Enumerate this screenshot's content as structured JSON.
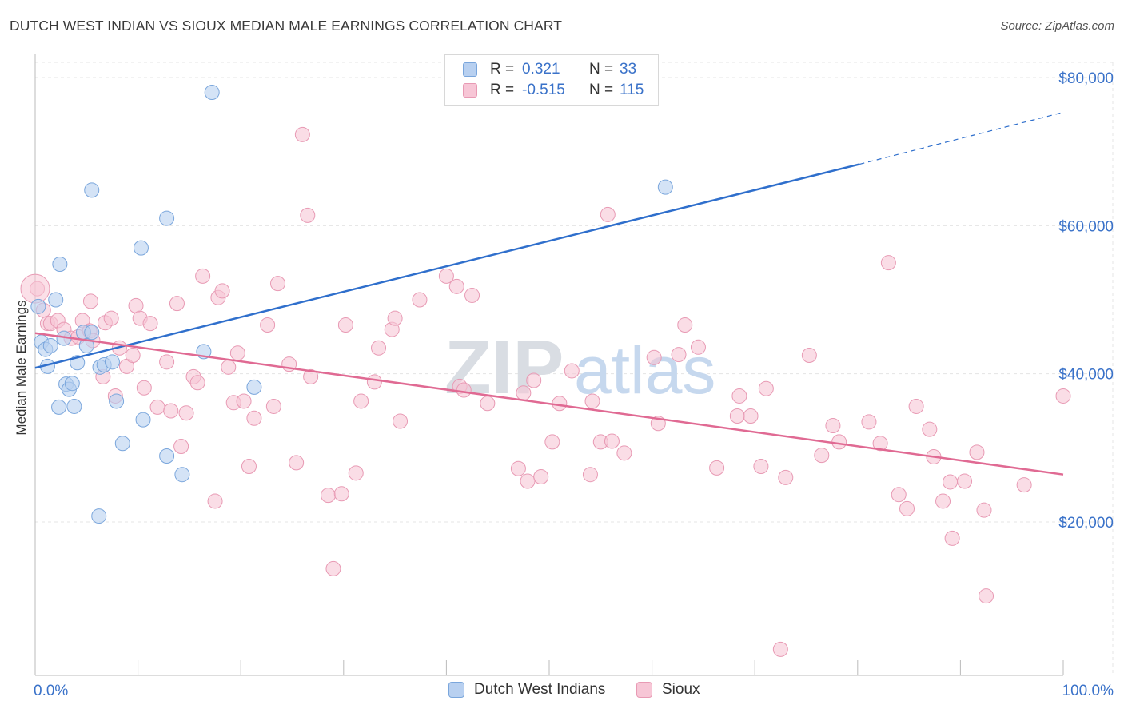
{
  "title": "DUTCH WEST INDIAN VS SIOUX MEDIAN MALE EARNINGS CORRELATION CHART",
  "source": "Source: ZipAtlas.com",
  "watermark": {
    "zip": "ZIP",
    "atlas": "atlas"
  },
  "colors": {
    "blue_fill": "#b8d0f0",
    "blue_stroke": "#7aa6dc",
    "blue_line": "#2f6fcc",
    "pink_fill": "#f7c6d6",
    "pink_stroke": "#e89ab4",
    "pink_line": "#e06a93",
    "axis_text": "#3a72c9",
    "grid": "#e4e4e4"
  },
  "legend_top": {
    "rows": [
      {
        "series": "Dutch West Indians",
        "r_label": "R =",
        "r_value": "0.321",
        "n_label": "N =",
        "n_value": "33"
      },
      {
        "series": "Sioux",
        "r_label": "R =",
        "r_value": "-0.515",
        "n_label": "N =",
        "n_value": "115"
      }
    ]
  },
  "chart_data": {
    "type": "scatter",
    "title": "DUTCH WEST INDIAN VS SIOUX MEDIAN MALE EARNINGS CORRELATION CHART",
    "xlabel": "",
    "ylabel": "Median Male Earnings",
    "xlim": [
      0,
      100
    ],
    "ylim": [
      2000,
      82000
    ],
    "x_tick_labels": [
      {
        "value": 0,
        "label": "0.0%"
      },
      {
        "value": 100,
        "label": "100.0%"
      }
    ],
    "y_ticks": [
      {
        "value": 20000,
        "label": "$20,000"
      },
      {
        "value": 40000,
        "label": "$40,000"
      },
      {
        "value": 60000,
        "label": "$60,000"
      },
      {
        "value": 80000,
        "label": "$80,000"
      }
    ],
    "grid": true,
    "series": [
      {
        "name": "Dutch West Indians",
        "color": "blue",
        "points": [
          [
            0.3,
            49.1
          ],
          [
            0.6,
            44.3
          ],
          [
            1.0,
            43.3
          ],
          [
            1.2,
            41.0
          ],
          [
            1.5,
            43.8
          ],
          [
            2.0,
            50.0
          ],
          [
            2.3,
            35.5
          ],
          [
            2.4,
            54.8
          ],
          [
            2.8,
            44.8
          ],
          [
            3.0,
            38.6
          ],
          [
            3.3,
            37.9
          ],
          [
            3.6,
            38.7
          ],
          [
            3.8,
            35.6
          ],
          [
            4.1,
            41.5
          ],
          [
            4.7,
            45.6
          ],
          [
            5.0,
            43.8
          ],
          [
            5.5,
            45.6
          ],
          [
            5.5,
            64.8
          ],
          [
            6.3,
            40.9
          ],
          [
            6.7,
            41.2
          ],
          [
            7.5,
            41.6
          ],
          [
            7.9,
            36.3
          ],
          [
            8.5,
            30.6
          ],
          [
            6.2,
            20.8
          ],
          [
            10.3,
            57.0
          ],
          [
            10.5,
            33.8
          ],
          [
            12.8,
            61.0
          ],
          [
            12.8,
            28.9
          ],
          [
            14.3,
            26.4
          ],
          [
            16.4,
            43.0
          ],
          [
            17.2,
            78.0
          ],
          [
            21.3,
            38.2
          ],
          [
            61.3,
            65.2
          ]
        ],
        "trend": {
          "x0": 0,
          "y0": 40.8,
          "x1": 80.2,
          "y1": 68.3,
          "dash_x1": 100,
          "dash_y1": 75.3
        }
      },
      {
        "name": "Sioux",
        "color": "pink",
        "points": [
          [
            0.2,
            51.5
          ],
          [
            0.8,
            48.6
          ],
          [
            1.2,
            46.8
          ],
          [
            1.5,
            46.8
          ],
          [
            2.2,
            47.2
          ],
          [
            2.8,
            46.0
          ],
          [
            3.5,
            44.8
          ],
          [
            4.2,
            45.0
          ],
          [
            4.6,
            47.2
          ],
          [
            5.3,
            45.8
          ],
          [
            5.6,
            44.5
          ],
          [
            6.6,
            39.6
          ],
          [
            5.4,
            49.8
          ],
          [
            6.8,
            46.9
          ],
          [
            7.4,
            47.5
          ],
          [
            7.8,
            37.0
          ],
          [
            8.2,
            43.5
          ],
          [
            8.9,
            41.0
          ],
          [
            9.5,
            42.5
          ],
          [
            9.8,
            49.2
          ],
          [
            10.2,
            47.5
          ],
          [
            10.6,
            38.1
          ],
          [
            11.2,
            46.8
          ],
          [
            11.9,
            35.5
          ],
          [
            12.8,
            41.6
          ],
          [
            13.2,
            35.0
          ],
          [
            13.8,
            49.5
          ],
          [
            14.2,
            30.2
          ],
          [
            14.7,
            34.7
          ],
          [
            15.4,
            39.6
          ],
          [
            15.8,
            38.8
          ],
          [
            16.3,
            53.2
          ],
          [
            17.5,
            22.8
          ],
          [
            17.8,
            50.3
          ],
          [
            18.2,
            51.2
          ],
          [
            18.8,
            40.9
          ],
          [
            19.3,
            36.1
          ],
          [
            19.7,
            42.8
          ],
          [
            20.3,
            36.3
          ],
          [
            20.8,
            27.5
          ],
          [
            21.3,
            34.0
          ],
          [
            22.6,
            46.6
          ],
          [
            23.2,
            35.6
          ],
          [
            23.6,
            52.2
          ],
          [
            24.7,
            41.3
          ],
          [
            25.4,
            28.0
          ],
          [
            26.0,
            72.3
          ],
          [
            26.5,
            61.4
          ],
          [
            26.8,
            39.6
          ],
          [
            28.5,
            23.6
          ],
          [
            29.0,
            13.7
          ],
          [
            29.8,
            23.8
          ],
          [
            30.2,
            46.6
          ],
          [
            31.2,
            26.6
          ],
          [
            31.7,
            36.3
          ],
          [
            33.0,
            38.9
          ],
          [
            33.4,
            43.5
          ],
          [
            34.7,
            46.0
          ],
          [
            35.0,
            47.5
          ],
          [
            35.5,
            33.6
          ],
          [
            37.4,
            50.0
          ],
          [
            40.0,
            53.2
          ],
          [
            41.0,
            51.8
          ],
          [
            41.3,
            38.3
          ],
          [
            41.7,
            37.8
          ],
          [
            42.5,
            50.6
          ],
          [
            44.0,
            36.0
          ],
          [
            47.0,
            27.2
          ],
          [
            47.5,
            37.4
          ],
          [
            47.9,
            25.5
          ],
          [
            48.5,
            39.1
          ],
          [
            49.2,
            26.1
          ],
          [
            50.3,
            30.8
          ],
          [
            51.0,
            36.0
          ],
          [
            52.2,
            40.4
          ],
          [
            54.0,
            26.4
          ],
          [
            54.2,
            36.3
          ],
          [
            55.0,
            30.8
          ],
          [
            55.7,
            61.5
          ],
          [
            56.1,
            30.9
          ],
          [
            57.3,
            29.3
          ],
          [
            60.2,
            42.2
          ],
          [
            60.6,
            33.3
          ],
          [
            63.2,
            46.6
          ],
          [
            64.5,
            43.6
          ],
          [
            66.3,
            27.3
          ],
          [
            68.3,
            34.3
          ],
          [
            68.5,
            37.0
          ],
          [
            69.6,
            34.3
          ],
          [
            70.6,
            27.5
          ],
          [
            71.1,
            38.0
          ],
          [
            72.5,
            2.8
          ],
          [
            73.0,
            26.0
          ],
          [
            75.3,
            42.5
          ],
          [
            76.5,
            29.0
          ],
          [
            77.6,
            33.0
          ],
          [
            78.2,
            30.8
          ],
          [
            81.1,
            33.5
          ],
          [
            82.2,
            30.6
          ],
          [
            83.0,
            55.0
          ],
          [
            84.0,
            23.7
          ],
          [
            84.8,
            21.8
          ],
          [
            85.7,
            35.6
          ],
          [
            87.0,
            32.5
          ],
          [
            87.4,
            28.8
          ],
          [
            88.3,
            22.8
          ],
          [
            89.0,
            25.4
          ],
          [
            89.2,
            17.8
          ],
          [
            90.4,
            25.5
          ],
          [
            91.6,
            29.4
          ],
          [
            92.5,
            10.0
          ],
          [
            92.3,
            21.6
          ],
          [
            96.2,
            25.0
          ],
          [
            100.0,
            37.0
          ],
          [
            62.6,
            42.6
          ]
        ],
        "trend": {
          "x0": 0,
          "y0": 45.5,
          "x1": 100,
          "y1": 26.4
        }
      }
    ]
  },
  "legend_bottom": [
    {
      "label": "Dutch West Indians"
    },
    {
      "label": "Sioux"
    }
  ]
}
